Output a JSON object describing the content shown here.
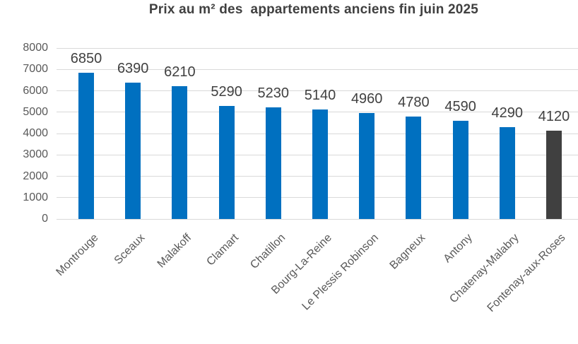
{
  "chart_data": {
    "type": "bar",
    "title": "Prix au m² des  appartements anciens fin juin 2025",
    "categories": [
      "Montrouge",
      "Sceaux",
      "Malakoff",
      "Clamart",
      "Chatillon",
      "Bourg-La-Reine",
      "Le Plessis Robinson",
      "Bagneux",
      "Antony",
      "Chatenay-Malabry",
      "Fontenay-aux-Roses"
    ],
    "values": [
      6850,
      6390,
      6210,
      5290,
      5230,
      5140,
      4960,
      4780,
      4590,
      4290,
      4120
    ],
    "value_labels": [
      "6850",
      "6390",
      "6210",
      "5290",
      "5230",
      "5140",
      "4960",
      "4780",
      "4590",
      "4290",
      "4120"
    ],
    "bar_colors": [
      "#0070C0",
      "#0070C0",
      "#0070C0",
      "#0070C0",
      "#0070C0",
      "#0070C0",
      "#0070C0",
      "#0070C0",
      "#0070C0",
      "#0070C0",
      "#404040"
    ],
    "highlighted_category": "Fontenay-aux-Roses",
    "xlabel": "",
    "ylabel": "",
    "ylim": [
      0,
      8000
    ],
    "yticks": [
      0,
      1000,
      2000,
      3000,
      4000,
      5000,
      6000,
      7000,
      8000
    ],
    "grid": true,
    "legend": "none",
    "data_labels": "outside-end",
    "colors": {
      "bar_primary": "#0070C0",
      "bar_highlight": "#404040",
      "gridline": "#d9d9d9",
      "tick_label": "#595959",
      "data_label": "#404040",
      "title": "#404040"
    }
  }
}
